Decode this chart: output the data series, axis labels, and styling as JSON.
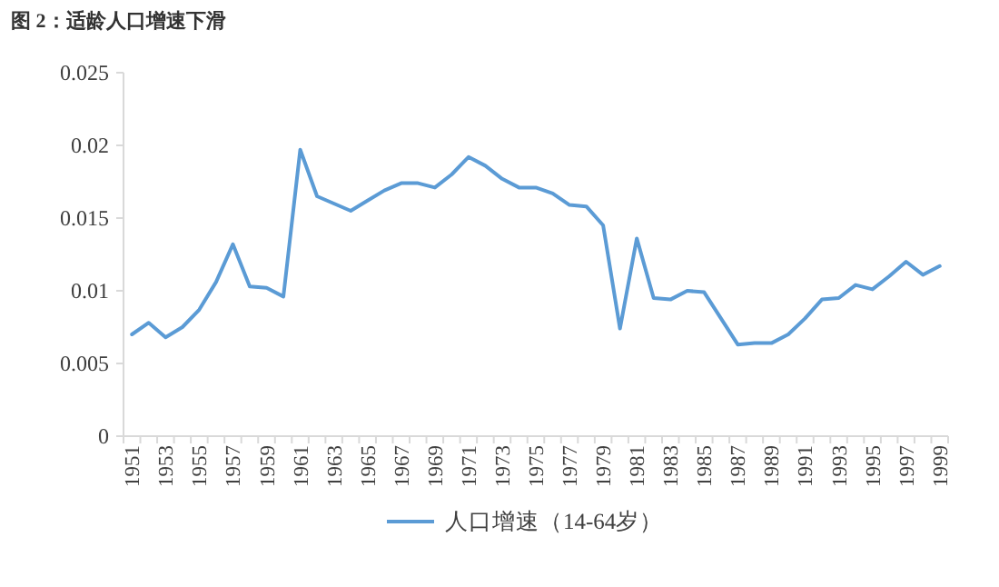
{
  "chart_data": {
    "type": "line",
    "title": "图 2：适龄人口增速下滑",
    "categories": [
      "1951",
      null,
      "1953",
      null,
      "1955",
      null,
      "1957",
      null,
      "1959",
      null,
      "1961",
      null,
      "1963",
      null,
      "1965",
      null,
      "1967",
      null,
      "1969",
      null,
      "1971",
      null,
      "1973",
      null,
      "1975",
      null,
      "1977",
      null,
      "1979",
      null,
      "1981",
      null,
      "1983",
      null,
      "1985",
      null,
      "1987",
      null,
      "1989",
      null,
      "1991",
      null,
      "1993",
      null,
      "1995",
      null,
      "1997",
      null,
      "1999"
    ],
    "series": [
      {
        "name": "人口增速（14-64岁）",
        "color": "#5b9bd5",
        "values": [
          0.007,
          0.0078,
          0.0068,
          0.0075,
          0.0087,
          0.0106,
          0.0132,
          0.0103,
          0.0102,
          0.0096,
          0.0197,
          0.0165,
          0.016,
          0.0155,
          0.0162,
          0.0169,
          0.0174,
          0.0174,
          0.0171,
          0.018,
          0.0192,
          0.0186,
          0.0177,
          0.0171,
          0.0171,
          0.0167,
          0.0159,
          0.0158,
          0.0145,
          0.0074,
          0.0136,
          0.0095,
          0.0094,
          0.01,
          0.0099,
          0.0081,
          0.0063,
          0.0064,
          0.0064,
          0.007,
          0.0081,
          0.0094,
          0.0095,
          0.0104,
          0.0101,
          0.011,
          0.012,
          0.0111,
          0.0117
        ]
      }
    ],
    "ylim": [
      0,
      0.025
    ],
    "yticks": [
      0,
      0.005,
      0.01,
      0.015,
      0.02,
      0.025
    ],
    "legend": "bottom",
    "grid": false,
    "marker": "none",
    "line_style": "solid"
  }
}
